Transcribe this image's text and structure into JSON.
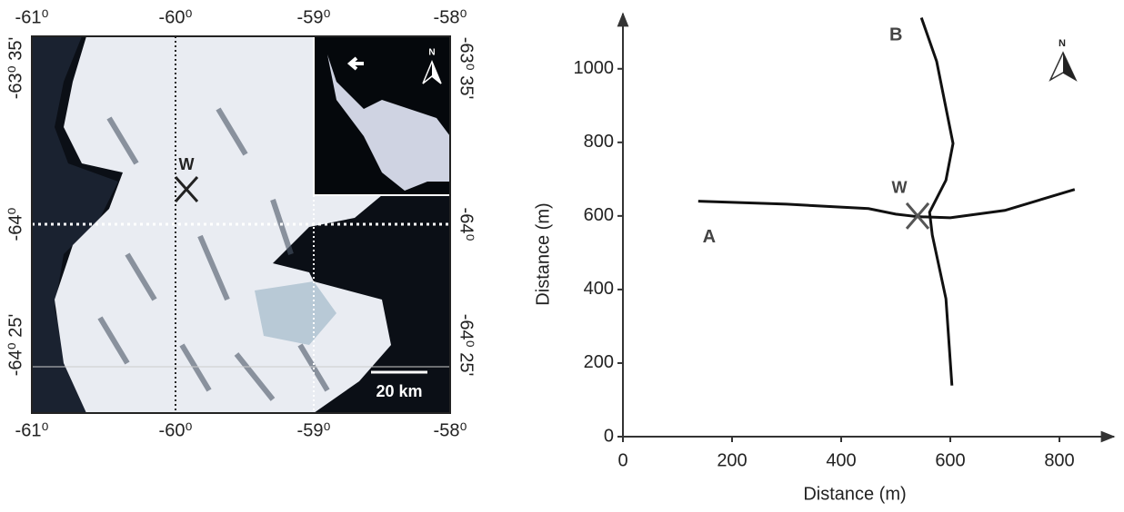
{
  "map": {
    "top_ticks": [
      "-61⁰",
      "-60⁰",
      "-59⁰",
      "-58⁰"
    ],
    "bottom_ticks": [
      "-61⁰",
      "-60⁰",
      "-59⁰",
      "-58⁰"
    ],
    "left_ticks": [
      "-63⁰ 35'",
      "-64⁰",
      "-64⁰ 25'"
    ],
    "right_ticks": [
      "-63⁰ 35'",
      "-64⁰",
      "-64⁰ 25'"
    ],
    "site_label": "W",
    "scale_label": "20 km",
    "north_label": "N"
  },
  "chart_data": {
    "type": "line",
    "xlabel": "Distance (m)",
    "ylabel": "Distance (m)",
    "xlim": [
      0,
      900
    ],
    "ylim": [
      0,
      1150
    ],
    "xticks": [
      0,
      200,
      400,
      600,
      800
    ],
    "yticks": [
      0,
      200,
      400,
      600,
      800,
      1000
    ],
    "series": [
      {
        "name": "A",
        "color": "#111111",
        "x": [
          138,
          300,
          450,
          500,
          540,
          600,
          700,
          828
        ],
        "values": [
          640,
          632,
          620,
          605,
          598,
          595,
          615,
          672
        ]
      },
      {
        "name": "B",
        "color": "#111111",
        "x": [
          547,
          575,
          605,
          592,
          562,
          567,
          592,
          603
        ],
        "values": [
          1139,
          1020,
          797,
          697,
          610,
          548,
          375,
          139
        ]
      }
    ],
    "site": {
      "label": "W",
      "x": 540,
      "y": 600
    },
    "north_label": "N"
  }
}
